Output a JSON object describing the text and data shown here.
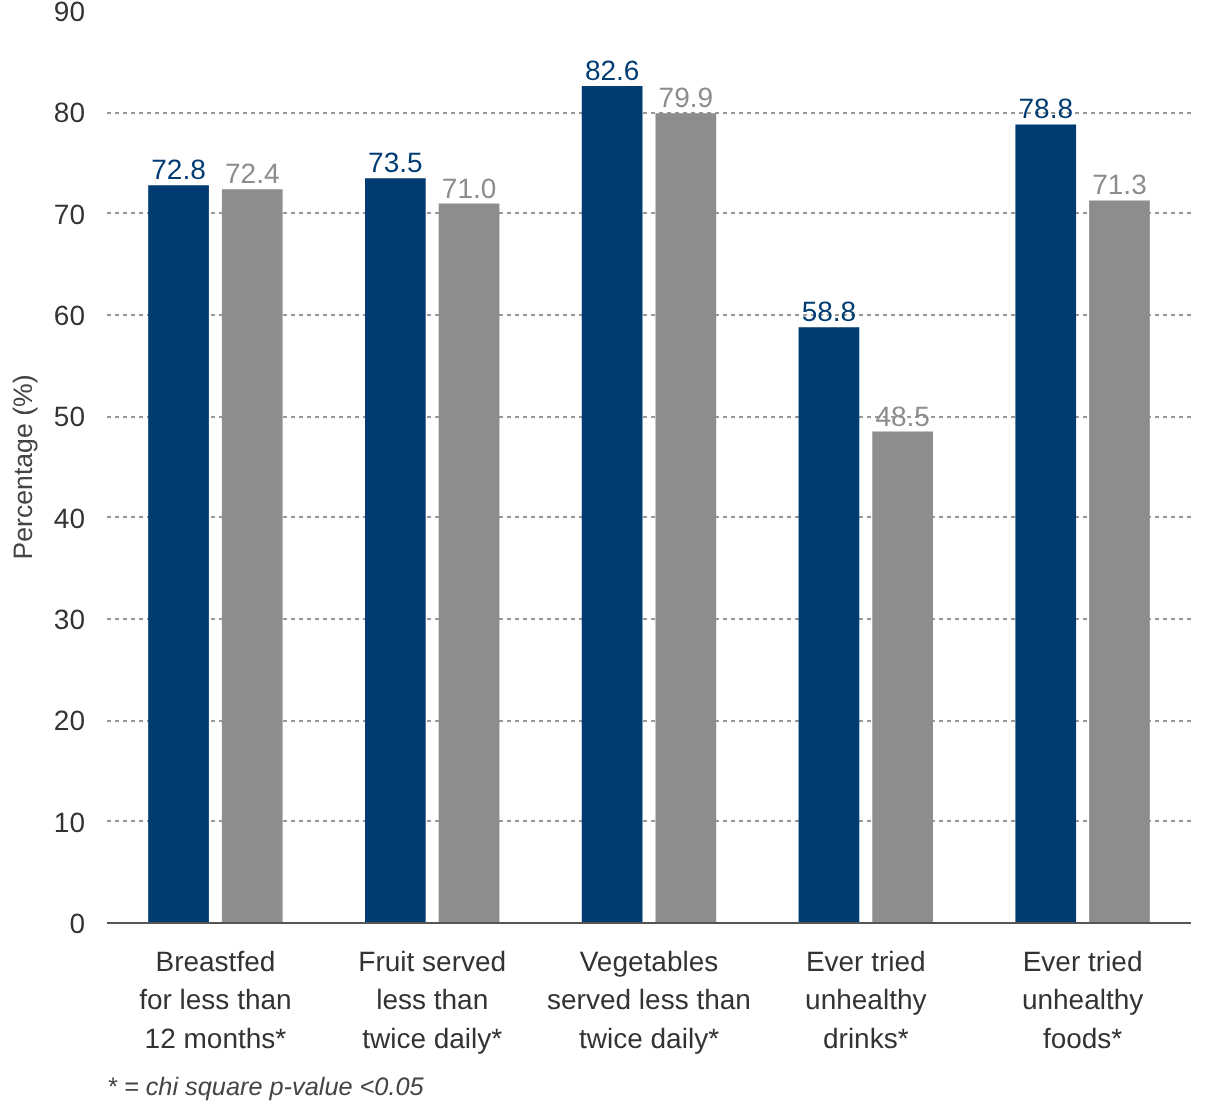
{
  "chart_data": {
    "type": "bar",
    "ylabel": "Percentage (%)",
    "categories": [
      "Breastfed\nfor less than\n12 months*",
      "Fruit served\nless than\ntwice daily*",
      "Vegetables\nserved less than\ntwice daily*",
      "Ever tried\nunhealthy\ndrinks*",
      "Ever tried\nunhealthy\nfoods*"
    ],
    "series": [
      {
        "color": "#003b71",
        "values": [
          72.8,
          73.5,
          82.6,
          58.8,
          78.8
        ],
        "value_labels": [
          "72.8",
          "73.5",
          "82.6",
          "58.8",
          "78.8"
        ]
      },
      {
        "color": "#8b8d8f",
        "values": [
          72.4,
          71.0,
          79.9,
          48.5,
          71.3
        ],
        "value_labels": [
          "72.4",
          "71.0",
          "79.9",
          "48.5",
          "71.3"
        ]
      }
    ],
    "ylim": [
      0,
      90
    ],
    "yticks": [
      0,
      10,
      20,
      30,
      40,
      50,
      60,
      70,
      80,
      90
    ],
    "grid": "y",
    "annotations": [
      "* = chi square p-value <0.05"
    ]
  }
}
